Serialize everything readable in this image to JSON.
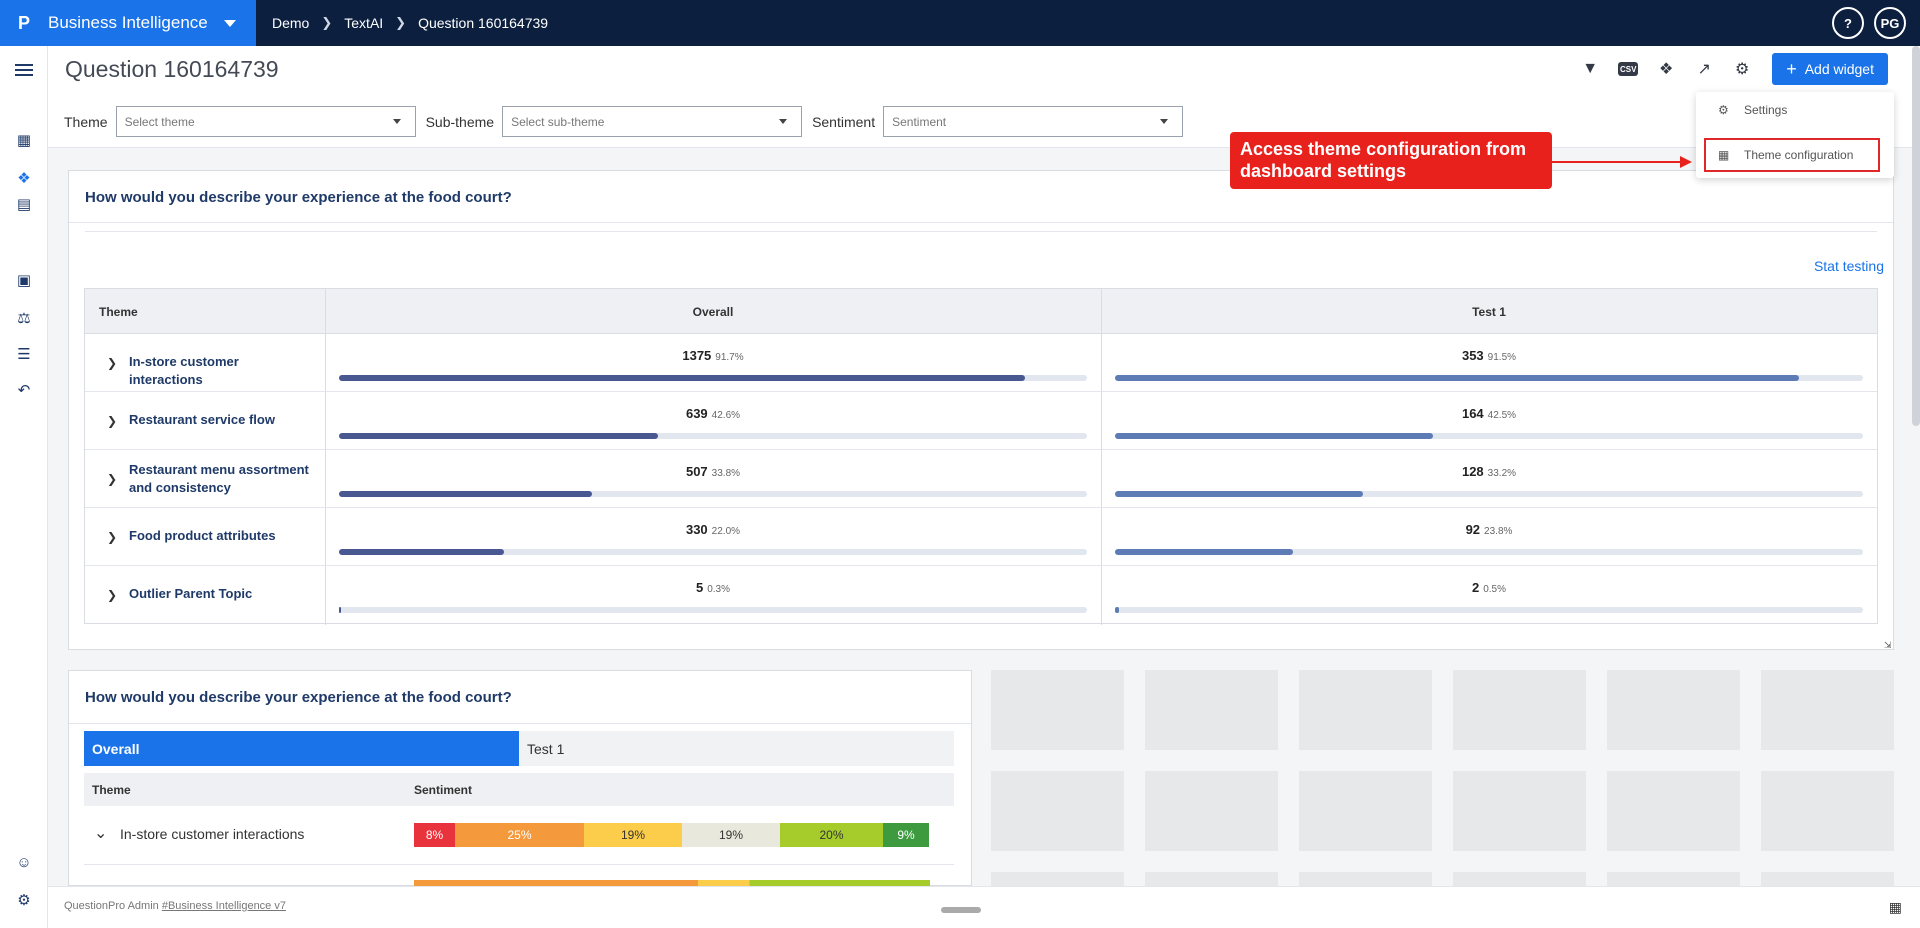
{
  "app": {
    "logo": "P",
    "name": "Business Intelligence",
    "breadcrumb": [
      "Demo",
      "TextAI",
      "Question 160164739"
    ],
    "help": "?",
    "user_initials": "PG"
  },
  "page": {
    "title": "Question 160164739",
    "add_widget_label": "Add widget"
  },
  "filters": {
    "theme_label": "Theme",
    "theme_placeholder": "Select theme",
    "subtheme_label": "Sub-theme",
    "subtheme_placeholder": "Select sub-theme",
    "sentiment_label": "Sentiment",
    "sentiment_placeholder": "Sentiment"
  },
  "settings_menu": {
    "items": [
      "Settings",
      "Theme configuration"
    ]
  },
  "callout": {
    "text": "Access theme configuration from dashboard settings"
  },
  "widget1": {
    "title": "How would you describe your experience at the food court?",
    "stat_testing_label": "Stat testing",
    "columns": [
      "Theme",
      "Overall",
      "Test 1"
    ],
    "rows": [
      {
        "label": "In-store customer interactions",
        "overall": {
          "value": "1375",
          "pct": "91.7%",
          "fraction": 0.917
        },
        "test1": {
          "value": "353",
          "pct": "91.5%",
          "fraction": 0.915
        }
      },
      {
        "label": "Restaurant service flow",
        "overall": {
          "value": "639",
          "pct": "42.6%",
          "fraction": 0.426
        },
        "test1": {
          "value": "164",
          "pct": "42.5%",
          "fraction": 0.425
        }
      },
      {
        "label": "Restaurant menu assortment and consistency",
        "overall": {
          "value": "507",
          "pct": "33.8%",
          "fraction": 0.338
        },
        "test1": {
          "value": "128",
          "pct": "33.2%",
          "fraction": 0.332
        }
      },
      {
        "label": "Food product attributes",
        "overall": {
          "value": "330",
          "pct": "22.0%",
          "fraction": 0.22
        },
        "test1": {
          "value": "92",
          "pct": "23.8%",
          "fraction": 0.238
        }
      },
      {
        "label": "Outlier Parent Topic",
        "overall": {
          "value": "5",
          "pct": "0.3%",
          "fraction": 0.003
        },
        "test1": {
          "value": "2",
          "pct": "0.5%",
          "fraction": 0.005
        }
      }
    ],
    "colors": {
      "overall_bar": "#4a5891",
      "test1_bar": "#5d7bb4"
    }
  },
  "widget2": {
    "title": "How would you describe your experience at the food court?",
    "tabs": [
      "Overall",
      "Test 1"
    ],
    "columns": [
      "Theme",
      "Sentiment"
    ],
    "row_label": "In-store customer interactions",
    "segments": [
      {
        "label": "8%",
        "fraction": 0.08,
        "color": "#e8323c",
        "text_color": "#ffffff"
      },
      {
        "label": "25%",
        "fraction": 0.25,
        "color": "#f59a3c",
        "text_color": "#ffffff"
      },
      {
        "label": "19%",
        "fraction": 0.19,
        "color": "#fbcd4b",
        "text_color": "#333333"
      },
      {
        "label": "19%",
        "fraction": 0.19,
        "color": "#e8e8dc",
        "text_color": "#333333"
      },
      {
        "label": "20%",
        "fraction": 0.2,
        "color": "#a6cc2c",
        "text_color": "#333333"
      },
      {
        "label": "9%",
        "fraction": 0.09,
        "color": "#3d9a3f",
        "text_color": "#ffffff"
      }
    ]
  },
  "footer": {
    "prefix": "QuestionPro Admin ",
    "link": "#Business Intelligence v7"
  }
}
